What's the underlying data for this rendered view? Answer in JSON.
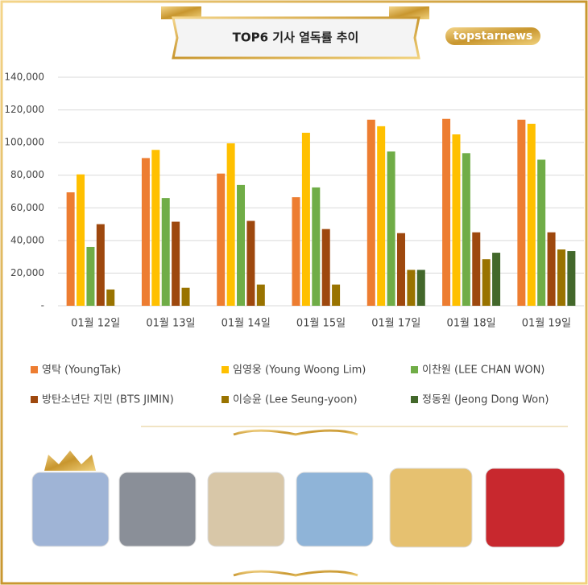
{
  "brand": "topstarnews",
  "chart_data": {
    "type": "bar",
    "title": "TOP6 기사 열독률 추이",
    "categories": [
      "01월 12일",
      "01월 13일",
      "01월 14일",
      "01월 15일",
      "01월 17일",
      "01월 18일",
      "01월 19일"
    ],
    "series": [
      {
        "name": "영탁 (YoungTak)",
        "color": "#ed7d31",
        "values": [
          69500,
          90500,
          81000,
          66500,
          114000,
          114500,
          114000
        ]
      },
      {
        "name": "임영웅 (Young Woong Lim)",
        "color": "#ffc000",
        "values": [
          80500,
          95500,
          99500,
          106000,
          110000,
          105000,
          111500
        ]
      },
      {
        "name": "이찬원 (LEE CHAN WON)",
        "color": "#70ad47",
        "values": [
          36000,
          66000,
          74000,
          72500,
          94500,
          93500,
          89500
        ]
      },
      {
        "name": "방탄소년단 지민 (BTS JIMIN)",
        "color": "#9e480e",
        "values": [
          50000,
          51500,
          52000,
          47000,
          44500,
          45000,
          45000
        ]
      },
      {
        "name": "이승윤 (Lee Seung-yoon)",
        "color": "#997300",
        "values": [
          10000,
          11000,
          13000,
          13000,
          22000,
          28500,
          34500
        ]
      },
      {
        "name": "정동원 (Jeong Dong Won)",
        "color": "#43682b",
        "values": [
          null,
          null,
          null,
          null,
          22000,
          32500,
          33500
        ]
      }
    ],
    "ylim": [
      0,
      140000
    ],
    "yticks": [
      {
        "value": 0,
        "label": "-"
      },
      {
        "value": 20000,
        "label": "20,000"
      },
      {
        "value": 40000,
        "label": "40,000"
      },
      {
        "value": 60000,
        "label": "60,000"
      },
      {
        "value": 80000,
        "label": "80,000"
      },
      {
        "value": 100000,
        "label": "100,000"
      },
      {
        "value": 120000,
        "label": "120,000"
      },
      {
        "value": 140000,
        "label": "140,000"
      }
    ],
    "grid": true
  }
}
